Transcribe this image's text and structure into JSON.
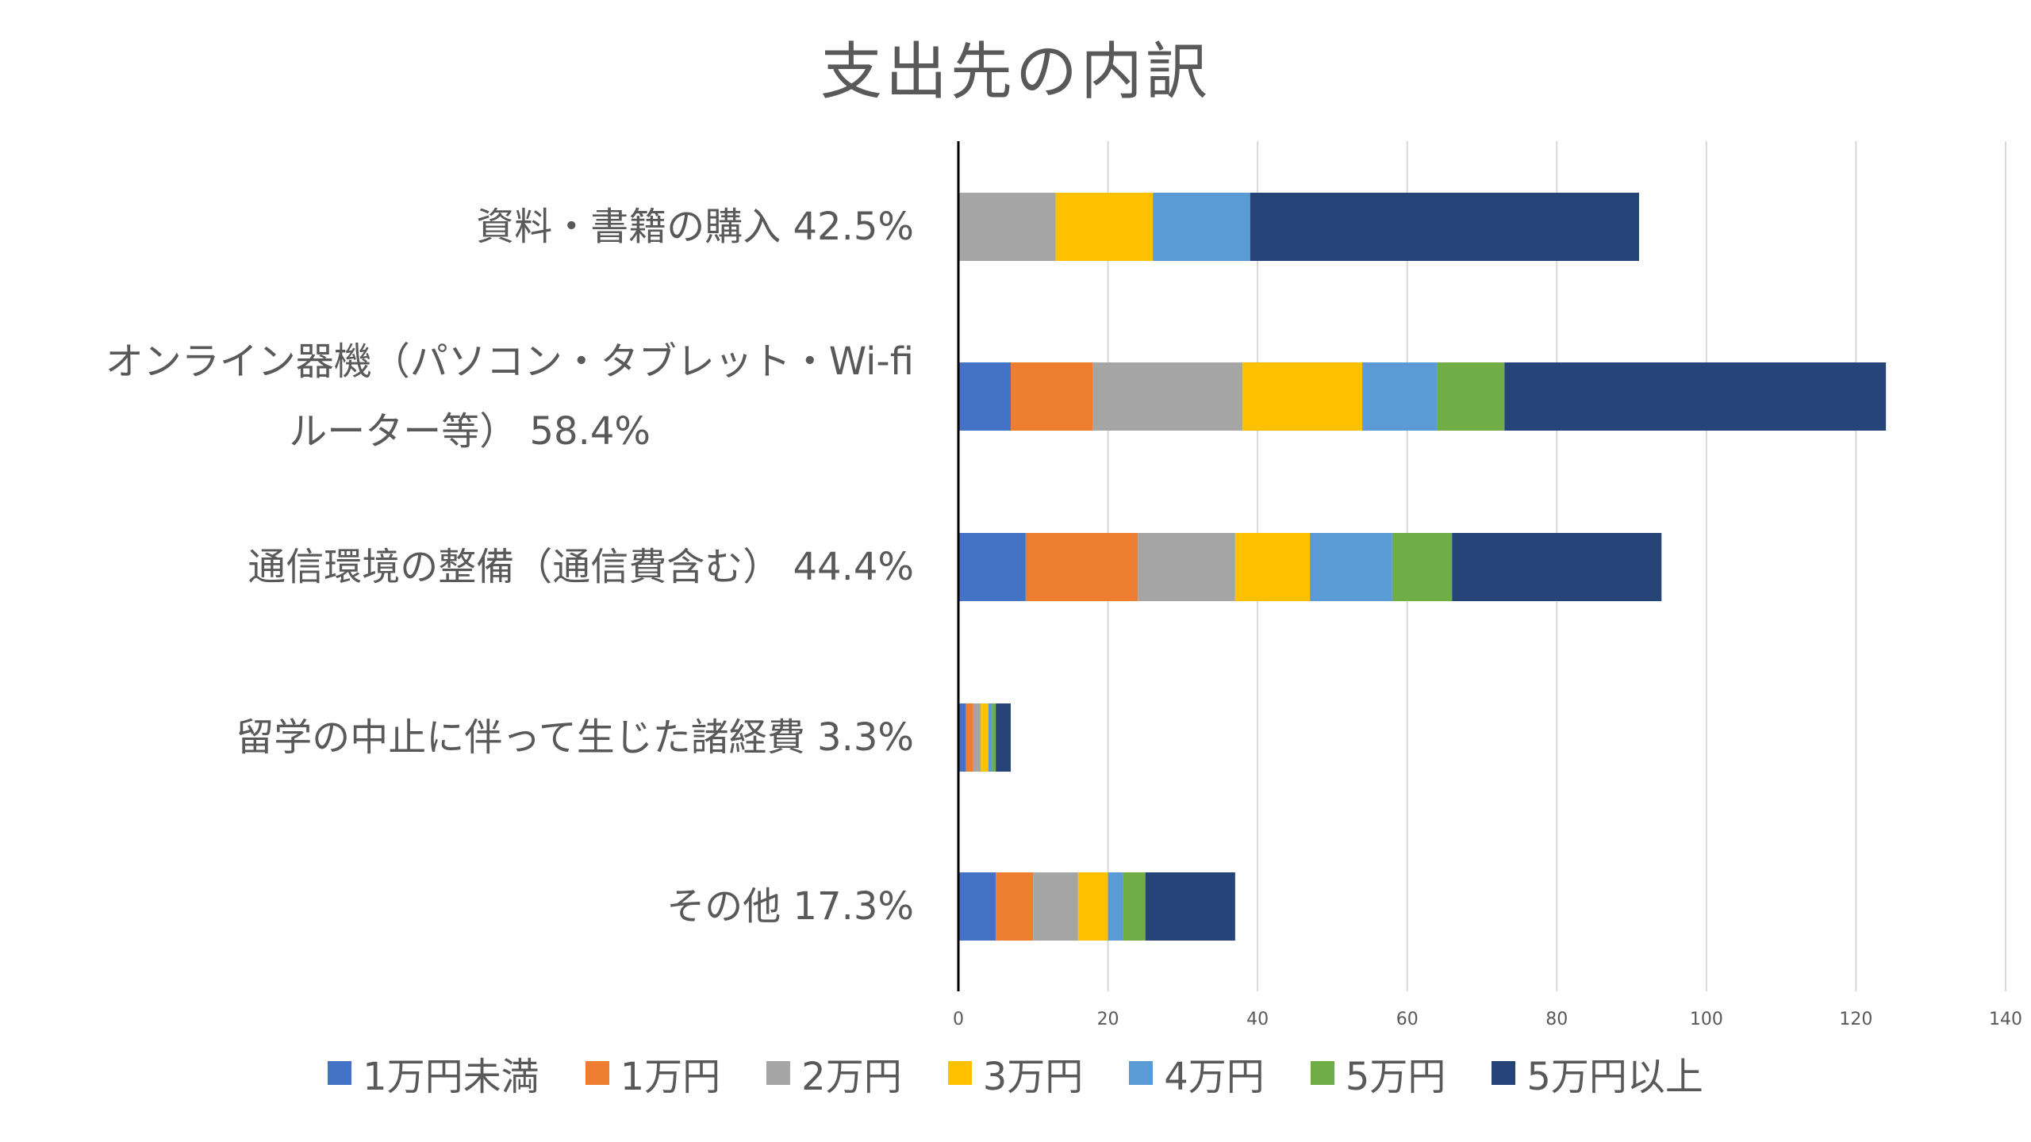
{
  "chart_data": {
    "type": "bar",
    "orientation": "horizontal",
    "stacked": true,
    "title": "支出先の内訳",
    "categories": [
      [
        "資料・書籍の購入 42.5%"
      ],
      [
        "オンライン器機（パソコン・タブレット・Wi-fi",
        "ルーター等） 58.4%"
      ],
      [
        "通信環境の整備（通信費含む） 44.4%"
      ],
      [
        "留学の中止に伴って生じた諸経費 3.3%"
      ],
      [
        "その他 17.3%"
      ]
    ],
    "series": [
      {
        "name": "1万円未満",
        "color": "#4472C4",
        "values": [
          0,
          7,
          9,
          1,
          5
        ]
      },
      {
        "name": "1万円",
        "color": "#ED7D31",
        "values": [
          0,
          11,
          15,
          1,
          5
        ]
      },
      {
        "name": "2万円",
        "color": "#A5A5A5",
        "values": [
          13,
          20,
          13,
          1,
          6
        ]
      },
      {
        "name": "3万円",
        "color": "#FFC000",
        "values": [
          13,
          16,
          10,
          1,
          4
        ]
      },
      {
        "name": "4万円",
        "color": "#5B9BD5",
        "values": [
          13,
          10,
          11,
          0.5,
          2
        ]
      },
      {
        "name": "5万円",
        "color": "#70AD47",
        "values": [
          0,
          9,
          8,
          0.5,
          3
        ]
      },
      {
        "name": "5万円以上",
        "color": "#264478",
        "values": [
          52,
          51,
          28,
          2,
          12
        ]
      }
    ],
    "xlim": [
      0,
      140
    ],
    "xticks": [
      0,
      20,
      40,
      60,
      80,
      100,
      120,
      140
    ],
    "grid": true,
    "legend_position": "bottom"
  }
}
